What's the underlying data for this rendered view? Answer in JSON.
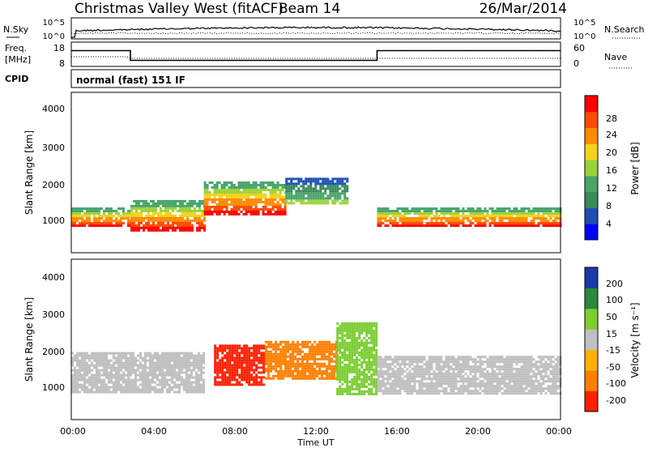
{
  "header": {
    "station": "Christmas Valley West (fitACF)",
    "beam": "Beam 14",
    "date": "26/Mar/2014"
  },
  "noise_panel": {
    "left_label": "N.Sky",
    "right_label": "N.Search",
    "left_ticks": [
      "10^5",
      "10^0"
    ],
    "right_ticks": [
      "10^5",
      "10^0"
    ]
  },
  "freq_panel": {
    "left_label_1": "Freq.",
    "left_label_2": "[MHz]",
    "left_ticks": [
      "18",
      "8"
    ],
    "right_label": "Nave",
    "right_ticks": [
      "60",
      "0"
    ]
  },
  "cpid_panel": {
    "label": "CPID",
    "program": "normal (fast) 151 IF"
  },
  "power_panel": {
    "ylabel": "Slant Range [km]",
    "yticks": [
      "4000",
      "3000",
      "2000",
      "1000"
    ],
    "colorbar_title": "Power [dB]",
    "colorbar_ticks": [
      "28",
      "24",
      "20",
      "16",
      "12",
      "8",
      "4"
    ]
  },
  "velocity_panel": {
    "ylabel": "Slant Range [km]",
    "yticks": [
      "4000",
      "3000",
      "2000",
      "1000"
    ],
    "colorbar_title": "Velocity [m s⁻¹]",
    "colorbar_ticks": [
      "200",
      "100",
      "50",
      "15",
      "-15",
      "-50",
      "-100",
      "-200"
    ]
  },
  "xaxis": {
    "label": "Time UT",
    "ticks": [
      "00:00",
      "04:00",
      "08:00",
      "12:00",
      "16:00",
      "20:00",
      "00:00"
    ]
  },
  "colors": {
    "power": [
      "#0000ff",
      "#1e4fb0",
      "#3a8a5a",
      "#49a46a",
      "#9bd23c",
      "#f3d21b",
      "#ff8c00",
      "#ff4a00",
      "#ff0000"
    ],
    "velocity": [
      "#1a3aa8",
      "#2a8a3a",
      "#7ccd32",
      "#c0c0c0",
      "#ffb000",
      "#ff8000",
      "#ff2000"
    ]
  },
  "chart_data": {
    "type": "heatmap",
    "x_range_hours": [
      0,
      24
    ],
    "y_range_km": [
      180,
      4500
    ],
    "frequency_mhz": [
      {
        "t": 0.0,
        "v": 14.5
      },
      {
        "t": 2.9,
        "v": 14.5
      },
      {
        "t": 2.9,
        "v": 10.5
      },
      {
        "t": 15.0,
        "v": 10.5
      },
      {
        "t": 15.0,
        "v": 14.5
      },
      {
        "t": 24.0,
        "v": 14.5
      }
    ],
    "power_bands": [
      {
        "t0": 0.0,
        "t1": 2.9,
        "r_lo": 900,
        "r_hi": 1400,
        "level": "high"
      },
      {
        "t0": 2.9,
        "t1": 6.5,
        "r_lo": 800,
        "r_hi": 1600,
        "level": "high"
      },
      {
        "t0": 6.5,
        "t1": 10.5,
        "r_lo": 1200,
        "r_hi": 2100,
        "level": "high"
      },
      {
        "t0": 10.5,
        "t1": 13.5,
        "r_lo": 1500,
        "r_hi": 2200,
        "level": "medium"
      },
      {
        "t0": 15.0,
        "t1": 24.0,
        "r_lo": 900,
        "r_hi": 1400,
        "level": "high"
      }
    ],
    "velocity_bands": [
      {
        "t0": 0.0,
        "t1": 6.5,
        "r_lo": 900,
        "r_hi": 2000,
        "v": 0
      },
      {
        "t0": 7.0,
        "t1": 9.5,
        "r_lo": 1100,
        "r_hi": 2200,
        "v": -200
      },
      {
        "t0": 9.5,
        "t1": 13.0,
        "r_lo": 1300,
        "r_hi": 2300,
        "v": -80
      },
      {
        "t0": 13.0,
        "t1": 15.0,
        "r_lo": 900,
        "r_hi": 2800,
        "v": 50
      },
      {
        "t0": 15.0,
        "t1": 24.0,
        "r_lo": 900,
        "r_hi": 1900,
        "v": 0
      }
    ]
  }
}
